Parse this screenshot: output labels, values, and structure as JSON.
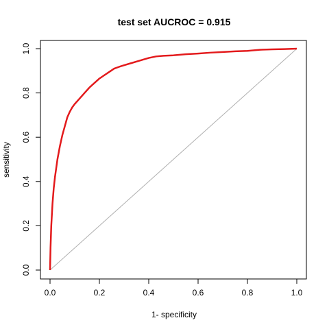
{
  "chart_data": {
    "type": "line",
    "title": "test set AUCROC = 0.915",
    "xlabel": "1- specificity",
    "ylabel": "sensitivity",
    "xlim": [
      0,
      1
    ],
    "ylim": [
      0,
      1
    ],
    "x_ticks": [
      "0.0",
      "0.2",
      "0.4",
      "0.6",
      "0.8",
      "1.0"
    ],
    "y_ticks": [
      "0.0",
      "0.2",
      "0.4",
      "0.6",
      "0.8",
      "1.0"
    ],
    "grid": false,
    "series": [
      {
        "color": "#e31a1c",
        "x": [
          0,
          0.002,
          0.005,
          0.01,
          0.015,
          0.02,
          0.03,
          0.04,
          0.05,
          0.06,
          0.07,
          0.08,
          0.09,
          0.1,
          0.12,
          0.14,
          0.16,
          0.18,
          0.2,
          0.22,
          0.24,
          0.26,
          0.28,
          0.3,
          0.33,
          0.36,
          0.4,
          0.43,
          0.46,
          0.5,
          0.55,
          0.6,
          0.65,
          0.7,
          0.75,
          0.8,
          0.85,
          0.9,
          0.95,
          1.0
        ],
        "y": [
          0,
          0.1,
          0.2,
          0.3,
          0.37,
          0.42,
          0.5,
          0.56,
          0.61,
          0.65,
          0.69,
          0.715,
          0.735,
          0.75,
          0.775,
          0.8,
          0.825,
          0.845,
          0.865,
          0.88,
          0.895,
          0.91,
          0.918,
          0.925,
          0.935,
          0.945,
          0.958,
          0.965,
          0.968,
          0.97,
          0.975,
          0.978,
          0.982,
          0.985,
          0.988,
          0.99,
          0.995,
          0.997,
          0.998,
          1.0
        ]
      },
      {
        "color": "#b0b0b0",
        "x": [
          0,
          1
        ],
        "y": [
          0,
          1
        ]
      }
    ]
  }
}
